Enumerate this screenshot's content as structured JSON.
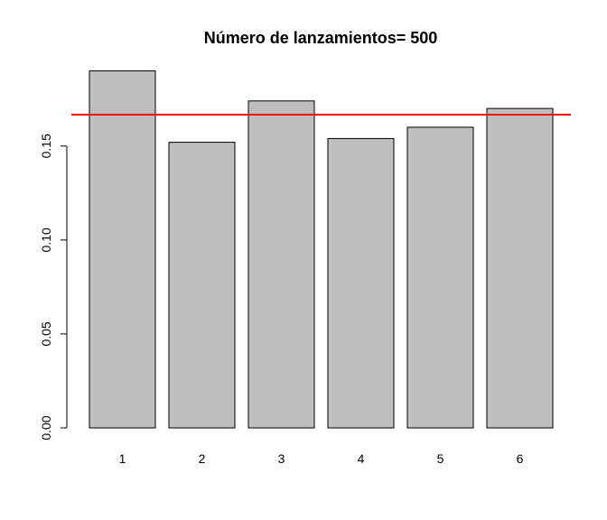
{
  "chart_data": {
    "type": "bar",
    "title": "Número de lanzamientos= 500",
    "xlabel": "",
    "ylabel": "",
    "categories": [
      "1",
      "2",
      "3",
      "4",
      "5",
      "6"
    ],
    "values": [
      0.19,
      0.152,
      0.174,
      0.154,
      0.16,
      0.17
    ],
    "ylim": [
      0,
      0.19
    ],
    "yticks": [
      0,
      0.05,
      0.1,
      0.15
    ],
    "ytick_labels": [
      "0.00",
      "0.05",
      "0.10",
      "0.15"
    ],
    "reference_line": {
      "y": 0.1667,
      "color": "#ff0000"
    },
    "bar_color": "#bebebe",
    "grid": false,
    "legend": "none"
  }
}
